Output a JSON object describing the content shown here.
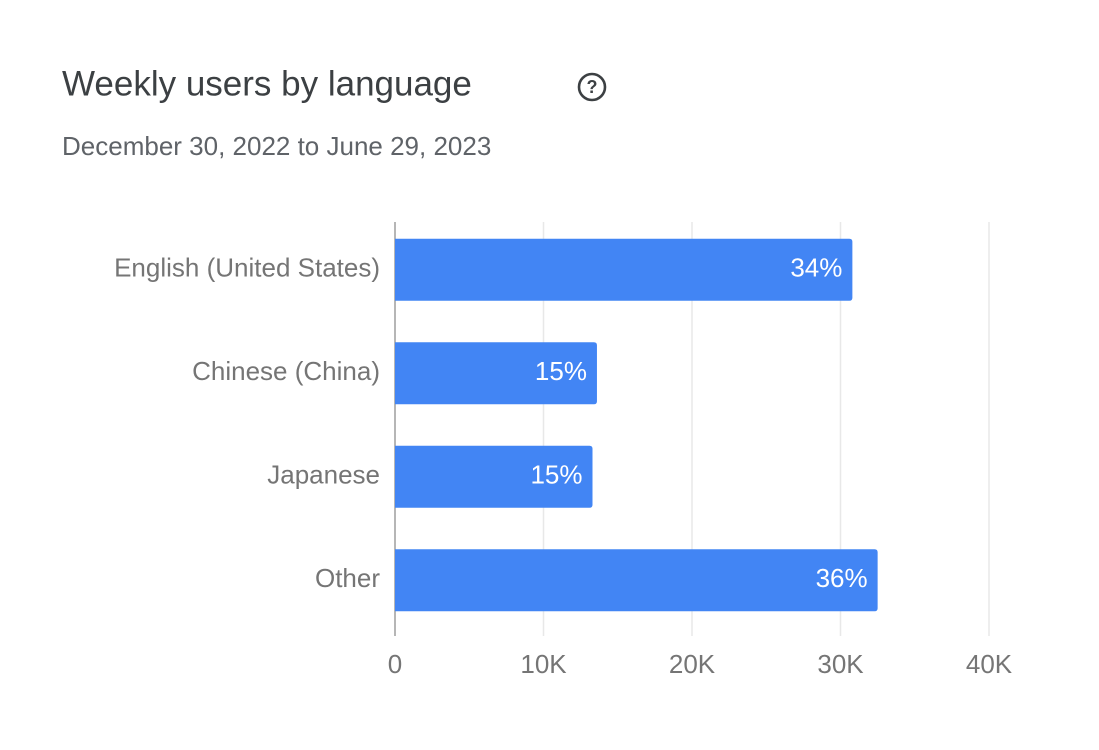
{
  "chart_data": {
    "type": "bar",
    "orientation": "horizontal",
    "title": "Weekly users by language",
    "subtitle": "December 30, 2022 to June 29, 2023",
    "categories": [
      "English (United States)",
      "Chinese (China)",
      "Japanese",
      "Other"
    ],
    "values": [
      30800,
      13600,
      13300,
      32500
    ],
    "data_labels": [
      "34%",
      "15%",
      "15%",
      "36%"
    ],
    "color": "#4285f4",
    "xlim": [
      0,
      40000
    ],
    "xticks": [
      0,
      {
        "value": 10000,
        "label": "10K"
      },
      {
        "value": 20000,
        "label": "20K"
      },
      {
        "value": 30000,
        "label": "30K"
      },
      {
        "value": 40000,
        "label": "40K"
      }
    ],
    "grid": true
  }
}
